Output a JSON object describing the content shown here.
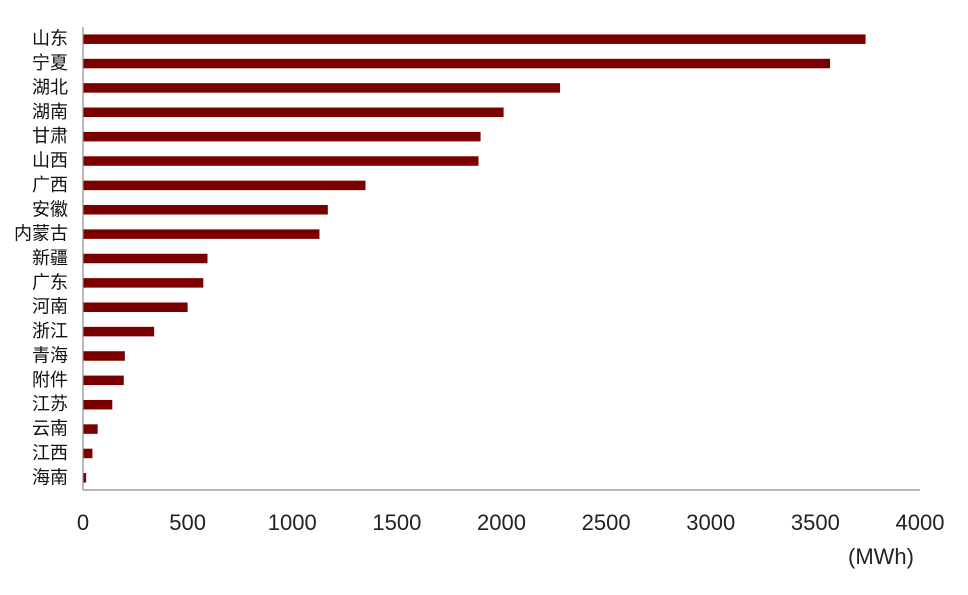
{
  "chart_data": {
    "type": "bar",
    "orientation": "horizontal",
    "categories": [
      "山东",
      "宁夏",
      "湖北",
      "湖南",
      "甘肃",
      "山西",
      "广西",
      "安徽",
      "内蒙古",
      "新疆",
      "广东",
      "河南",
      "浙江",
      "青海",
      "附件",
      "江苏",
      "云南",
      "江西",
      "海南"
    ],
    "values": [
      3740,
      3570,
      2280,
      2010,
      1900,
      1890,
      1350,
      1170,
      1130,
      595,
      575,
      500,
      340,
      200,
      195,
      140,
      70,
      45,
      15
    ],
    "xlim": [
      0,
      4000
    ],
    "xticks": [
      0,
      500,
      1000,
      1500,
      2000,
      2500,
      3000,
      3500,
      4000
    ],
    "xlabel": "(MWh)",
    "grid": false,
    "bar_color": "#7a0000",
    "axis_color": "#8c8c8c"
  }
}
